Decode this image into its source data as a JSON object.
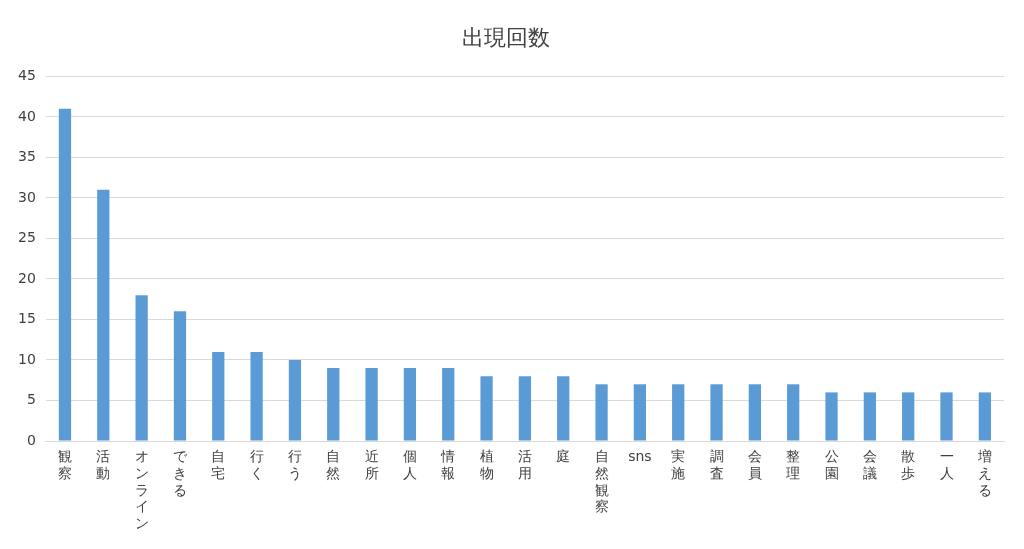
{
  "chart_data": {
    "type": "bar",
    "title": "出現回数",
    "categories": [
      "観察",
      "活動",
      "オンライン",
      "できる",
      "自宅",
      "行く",
      "行う",
      "自然",
      "近所",
      "個人",
      "情報",
      "植物",
      "活用",
      "庭",
      "自然観察",
      "sns",
      "実施",
      "調査",
      "会員",
      "整理",
      "公園",
      "会議",
      "散歩",
      "一人",
      "増える"
    ],
    "values": [
      41,
      31,
      18,
      16,
      11,
      11,
      10,
      9,
      9,
      9,
      9,
      8,
      8,
      8,
      7,
      7,
      7,
      7,
      7,
      7,
      6,
      6,
      6,
      6,
      6
    ],
    "color": "#5b9bd5",
    "ylim": [
      0,
      45
    ],
    "yticks": [
      0,
      5,
      10,
      15,
      20,
      25,
      30,
      35,
      40,
      45
    ],
    "grid": "y",
    "legend": false
  }
}
